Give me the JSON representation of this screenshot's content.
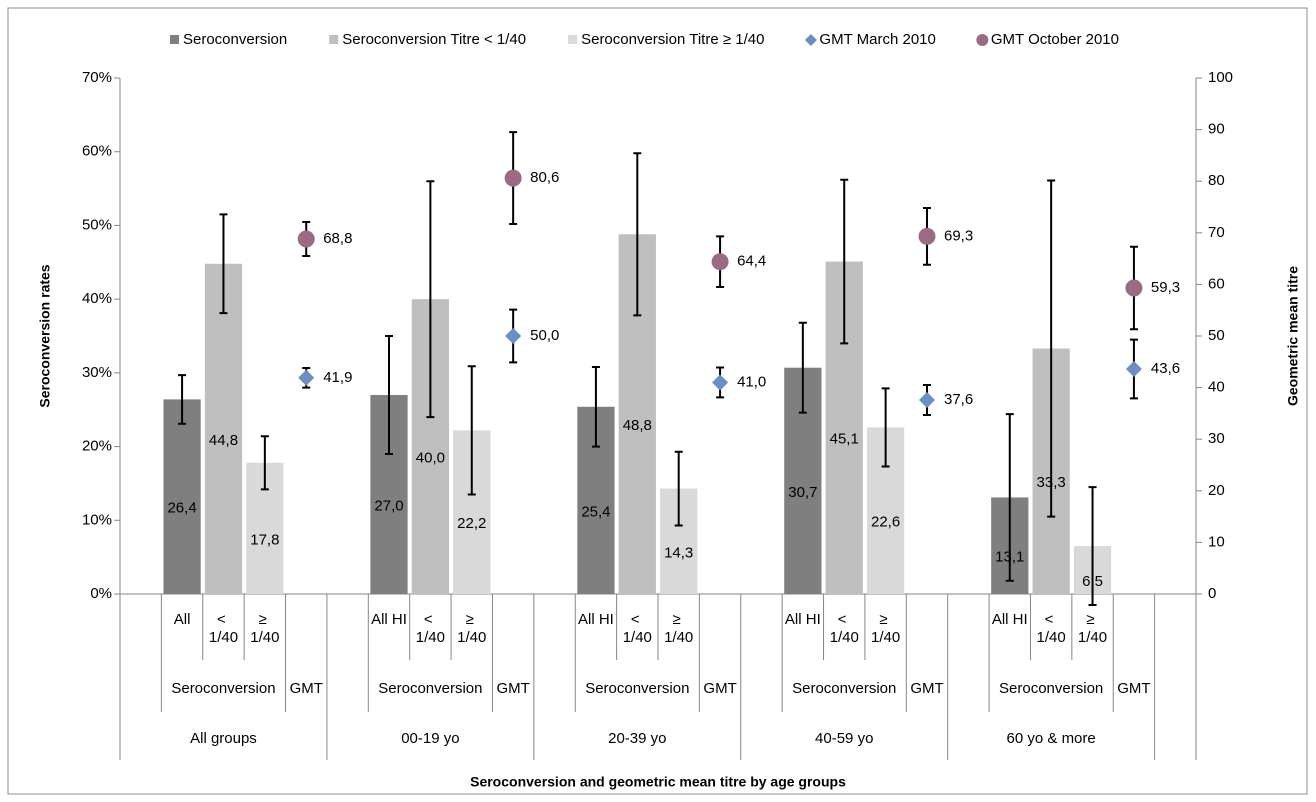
{
  "chart_data": {
    "type": "bar",
    "xlabel": "Seroconversion and geometric mean titre by age groups",
    "ylabel": "Seroconversion rates",
    "y2label": "Geometric mean titre",
    "categories": [
      null,
      "All",
      "< 1/40",
      "≥ 1/40",
      null,
      null,
      "All HI",
      "< 1/40",
      "≥ 1/40",
      null,
      null,
      "All HI",
      "< 1/40",
      "≥ 1/40",
      null,
      null,
      "All HI",
      "< 1/40",
      "≥ 1/40",
      null,
      null,
      "All HI",
      "< 1/40",
      "≥ 1/40",
      null,
      null
    ],
    "groups": [
      {
        "name": "All groups",
        "subcategories": [
          "Seroconversion",
          "GMT"
        ]
      },
      {
        "name": "00-19 yo",
        "subcategories": [
          "Seroconversion",
          "GMT"
        ]
      },
      {
        "name": "20-39 yo",
        "subcategories": [
          "Seroconversion",
          "GMT"
        ]
      },
      {
        "name": "40-59 yo",
        "subcategories": [
          "Seroconversion",
          "GMT"
        ]
      },
      {
        "name": "60 yo & more",
        "subcategories": [
          "Seroconversion",
          "GMT"
        ]
      }
    ],
    "series": [
      {
        "name": "Seroconversion",
        "type": "bar",
        "color": "#7f7f7f",
        "values": [
          null,
          26.4,
          null,
          null,
          null,
          null,
          27.0,
          null,
          null,
          null,
          null,
          25.4,
          null,
          null,
          null,
          null,
          30.7,
          null,
          null,
          null,
          null,
          13.1,
          null,
          null,
          null,
          null
        ],
        "errors": [
          null,
          3.3,
          null,
          null,
          null,
          null,
          8,
          null,
          null,
          null,
          null,
          5.4,
          null,
          null,
          null,
          null,
          6.1,
          null,
          null,
          null,
          null,
          11.3,
          null,
          null,
          null,
          null
        ],
        "value_labels": [
          null,
          "26,4",
          null,
          null,
          null,
          null,
          "27,0",
          null,
          null,
          null,
          null,
          "25,4",
          null,
          null,
          null,
          null,
          "30,7",
          null,
          null,
          null,
          null,
          "13,1",
          null,
          null,
          null,
          null
        ]
      },
      {
        "name": "Seroconversion Titre < 1/40",
        "type": "bar",
        "color": "#bfbfbf",
        "values": [
          null,
          null,
          44.8,
          null,
          null,
          null,
          null,
          40.0,
          null,
          null,
          null,
          null,
          48.8,
          null,
          null,
          null,
          null,
          45.1,
          null,
          null,
          null,
          null,
          33.3,
          null,
          null,
          null
        ],
        "errors": [
          null,
          null,
          6.7,
          null,
          null,
          null,
          null,
          16,
          null,
          null,
          null,
          null,
          11,
          null,
          null,
          null,
          null,
          11.1,
          null,
          null,
          null,
          null,
          22.8,
          null,
          null,
          null
        ],
        "value_labels": [
          null,
          null,
          "44,8",
          null,
          null,
          null,
          null,
          "40,0",
          null,
          null,
          null,
          null,
          "48,8",
          null,
          null,
          null,
          null,
          "45,1",
          null,
          null,
          null,
          null,
          "33,3",
          null,
          null,
          null
        ]
      },
      {
        "name": "Seroconversion Titre ≥ 1/40",
        "type": "bar",
        "color": "#d9d9d9",
        "values": [
          null,
          null,
          null,
          17.8,
          null,
          null,
          null,
          null,
          22.2,
          null,
          null,
          null,
          null,
          14.3,
          null,
          null,
          null,
          null,
          22.6,
          null,
          null,
          null,
          null,
          6.5,
          null,
          null
        ],
        "errors": [
          null,
          null,
          null,
          3.6,
          null,
          null,
          null,
          null,
          8.7,
          null,
          null,
          null,
          null,
          5,
          null,
          null,
          null,
          null,
          5.3,
          null,
          null,
          null,
          null,
          8,
          null,
          null
        ],
        "value_labels": [
          null,
          null,
          null,
          "17,8",
          null,
          null,
          null,
          null,
          "22,2",
          null,
          null,
          null,
          null,
          "14,3",
          null,
          null,
          null,
          null,
          "22,6",
          null,
          null,
          null,
          null,
          "6,5",
          null,
          null
        ]
      },
      {
        "name": "GMT March 2010",
        "type": "scatter",
        "marker": "diamond",
        "axis": "y2",
        "color": "#6d8ebf",
        "values": [
          null,
          null,
          null,
          null,
          41.9,
          null,
          null,
          null,
          null,
          50.0,
          null,
          null,
          null,
          null,
          41.0,
          null,
          null,
          null,
          null,
          37.6,
          null,
          null,
          null,
          null,
          43.6,
          null
        ],
        "errors": [
          null,
          null,
          null,
          null,
          1.9,
          null,
          null,
          null,
          null,
          5.1,
          null,
          null,
          null,
          null,
          2.9,
          null,
          null,
          null,
          null,
          2.9,
          null,
          null,
          null,
          null,
          5.7,
          null
        ],
        "value_labels": [
          null,
          null,
          null,
          null,
          "41,9",
          null,
          null,
          null,
          null,
          "50,0",
          null,
          null,
          null,
          null,
          "41,0",
          null,
          null,
          null,
          null,
          "37,6",
          null,
          null,
          null,
          null,
          "43,6",
          null
        ]
      },
      {
        "name": "GMT October 2010",
        "type": "scatter",
        "marker": "circle",
        "axis": "y2",
        "color": "#9b6b85",
        "values": [
          null,
          null,
          null,
          null,
          68.8,
          null,
          null,
          null,
          null,
          80.6,
          null,
          null,
          null,
          null,
          64.4,
          null,
          null,
          null,
          null,
          69.3,
          null,
          null,
          null,
          null,
          59.3,
          null
        ],
        "errors": [
          null,
          null,
          null,
          null,
          3.3,
          null,
          null,
          null,
          null,
          8.9,
          null,
          null,
          null,
          null,
          4.9,
          null,
          null,
          null,
          null,
          5.5,
          null,
          null,
          null,
          null,
          8,
          null
        ],
        "value_labels": [
          null,
          null,
          null,
          null,
          "68,8",
          null,
          null,
          null,
          null,
          "80,6",
          null,
          null,
          null,
          null,
          "64,4",
          null,
          null,
          null,
          null,
          "69,3",
          null,
          null,
          null,
          null,
          "59,3",
          null
        ]
      }
    ],
    "ylim": [
      0,
      70
    ],
    "yticks": [
      {
        "value": 0,
        "label": "0%"
      },
      {
        "value": 10,
        "label": "10%"
      },
      {
        "value": 20,
        "label": "20%"
      },
      {
        "value": 30,
        "label": "30%"
      },
      {
        "value": 40,
        "label": "40%"
      },
      {
        "value": 50,
        "label": "50%"
      },
      {
        "value": 60,
        "label": "60%"
      },
      {
        "value": 70,
        "label": "70%"
      }
    ],
    "y2lim": [
      0,
      100
    ],
    "y2ticks": [
      0,
      10,
      20,
      30,
      40,
      50,
      60,
      70,
      80,
      90,
      100
    ],
    "legend": "top",
    "grid": false
  }
}
